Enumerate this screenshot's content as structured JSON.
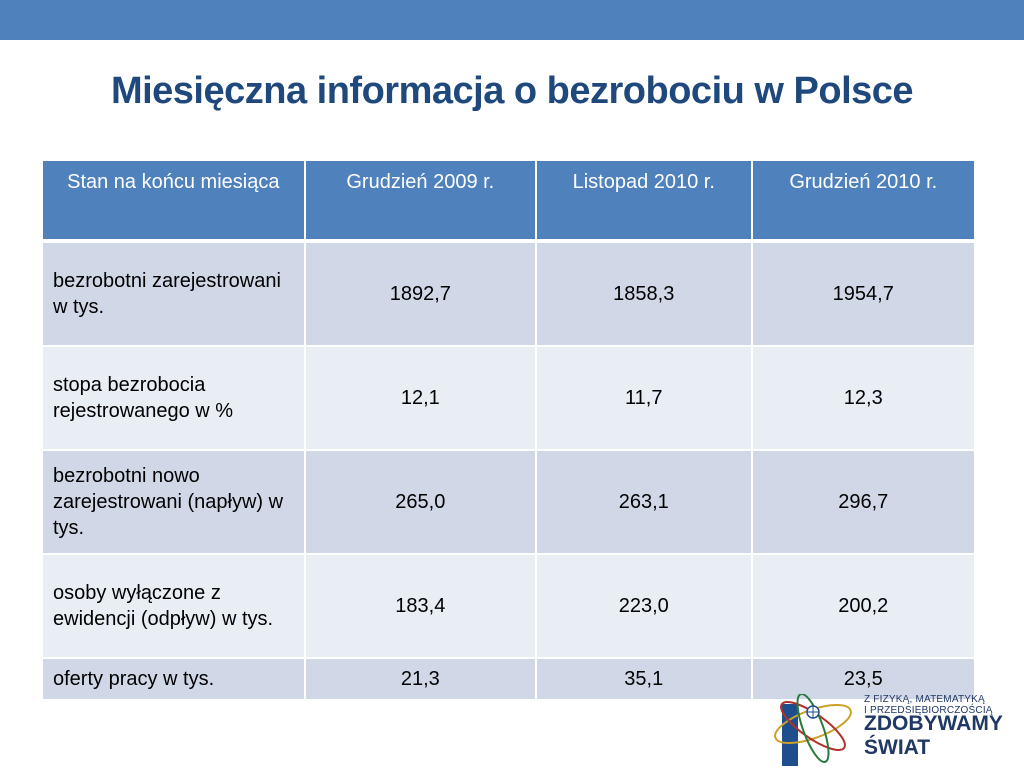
{
  "title": "Miesięczna informacja o bezrobociu w Polsce",
  "table": {
    "headers": [
      "Stan na końcu miesiąca",
      "Grudzień 2009 r.",
      "Listopad 2010 r.",
      "Grudzień 2010 r."
    ],
    "rows": [
      [
        "bezrobotni zarejestrowani w tys.",
        "1892,7",
        "1858,3",
        "1954,7"
      ],
      [
        "stopa bezrobocia rejestrowanego w %",
        "12,1",
        "11,7",
        "12,3"
      ],
      [
        "bezrobotni nowo zarejestrowani (napływ) w tys.",
        "265,0",
        "263,1",
        "296,7"
      ],
      [
        "osoby wyłączone z ewidencji (odpływ) w tys.",
        "183,4",
        "223,0",
        "200,2"
      ],
      [
        "oferty pracy w tys.",
        "21,3",
        "35,1",
        "23,5"
      ]
    ]
  },
  "logo": {
    "line1": "Z FIZYKĄ, MATEMATYKĄ",
    "line2": "I PRZEDSIĘBIORCZOŚCIĄ",
    "line3": "ZDOBYWAMY",
    "line4": "ŚWIAT"
  },
  "colors": {
    "accent": "#4f81bd",
    "title": "#1f497d",
    "row_odd": "#d0d8e8",
    "row_even": "#e9edf4"
  }
}
